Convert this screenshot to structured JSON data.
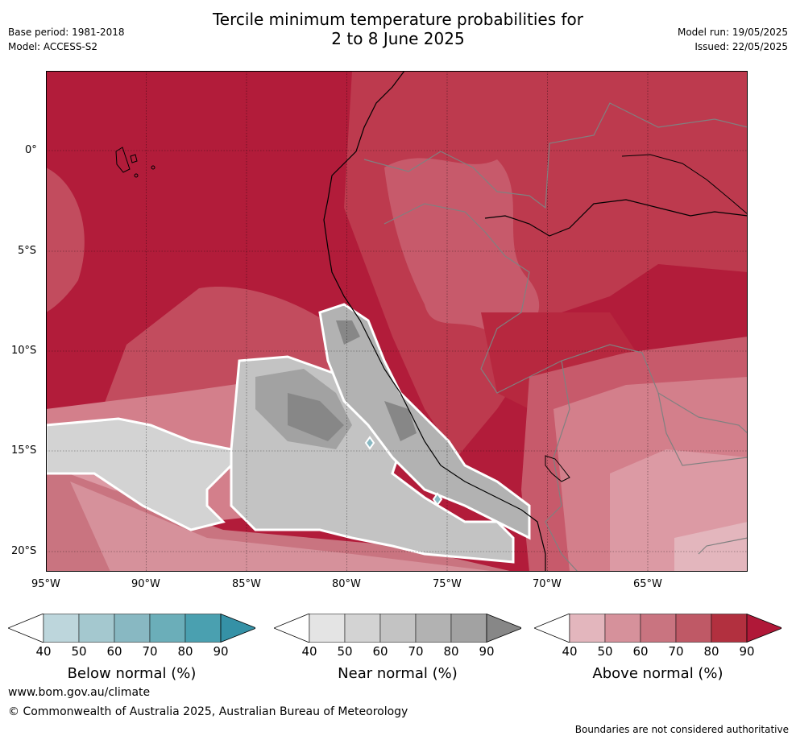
{
  "header": {
    "title_line1": "Tercile minimum temperature probabilities for",
    "title_line2": "2 to 8 June 2025",
    "base_period": "Base period: 1981-2018",
    "model": "Model: ACCESS-S2",
    "model_run": "Model run: 19/05/2025",
    "issued": "Issued: 22/05/2025"
  },
  "map": {
    "lat_labels": [
      "0°",
      "5°S",
      "10°S",
      "15°S",
      "20°S"
    ],
    "lon_labels": [
      "95°W",
      "90°W",
      "85°W",
      "80°W",
      "75°W",
      "70°W",
      "65°W"
    ],
    "lon_values": [
      -95,
      -90,
      -85,
      -80,
      -75,
      -70,
      -65
    ],
    "lat_values": [
      0,
      -5,
      -10,
      -15,
      -20
    ],
    "extent": {
      "lon": [
        -95,
        -60
      ],
      "lat": [
        -21,
        4
      ]
    }
  },
  "colorbars": [
    {
      "label": "Below normal (%)",
      "ticks": [
        "40",
        "50",
        "60",
        "70",
        "80",
        "90"
      ],
      "colors": [
        "#bdd6dc",
        "#a4c8cf",
        "#88b8c2",
        "#6baeb9",
        "#4aa0b0",
        "#3591a6"
      ]
    },
    {
      "label": "Near normal (%)",
      "ticks": [
        "40",
        "50",
        "60",
        "70",
        "80",
        "90"
      ],
      "colors": [
        "#e4e4e4",
        "#d3d3d3",
        "#c3c3c3",
        "#b2b2b2",
        "#a2a2a2",
        "#878787"
      ]
    },
    {
      "label": "Above normal (%)",
      "ticks": [
        "40",
        "50",
        "60",
        "70",
        "80",
        "90"
      ],
      "colors": [
        "#e3b6bd",
        "#d6919b",
        "#c97480",
        "#bf5966",
        "#b2303f",
        "#b01838"
      ]
    }
  ],
  "footer": {
    "url": "www.bom.gov.au/climate",
    "copyright": "© Commonwealth of Australia 2025, Australian Bureau of Meteorology",
    "disclaimer": "Boundaries are not considered authoritative"
  }
}
